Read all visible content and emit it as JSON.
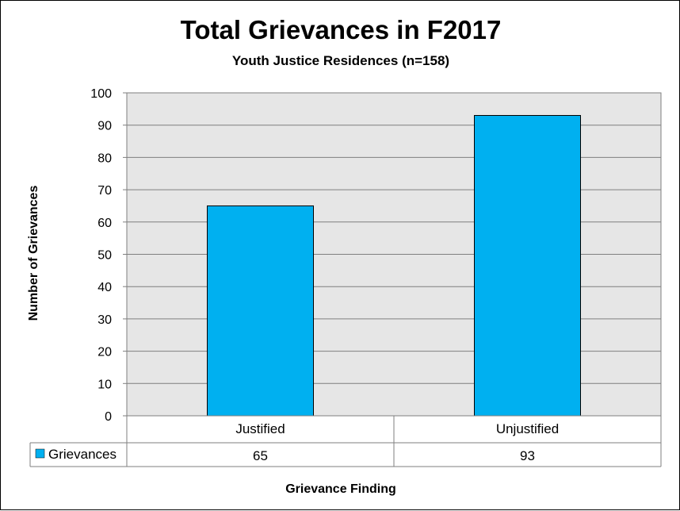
{
  "chart_data": {
    "type": "bar",
    "title": "Total Grievances in F2017",
    "subtitle": "Youth Justice Residences (n=158)",
    "xlabel": "Grievance Finding",
    "ylabel": "Number of Grievances",
    "categories": [
      "Justified",
      "Unjustified"
    ],
    "series": [
      {
        "name": "Grievances",
        "values": [
          65,
          93
        ],
        "color": "#00B0F0"
      }
    ],
    "ylim": [
      0,
      100
    ],
    "yticks": [
      "0",
      "10",
      "20",
      "30",
      "40",
      "50",
      "60",
      "70",
      "80",
      "90",
      "100"
    ],
    "grid": true,
    "plot_background": "#E6E6E6",
    "legend": "data-table",
    "data_table": true
  }
}
